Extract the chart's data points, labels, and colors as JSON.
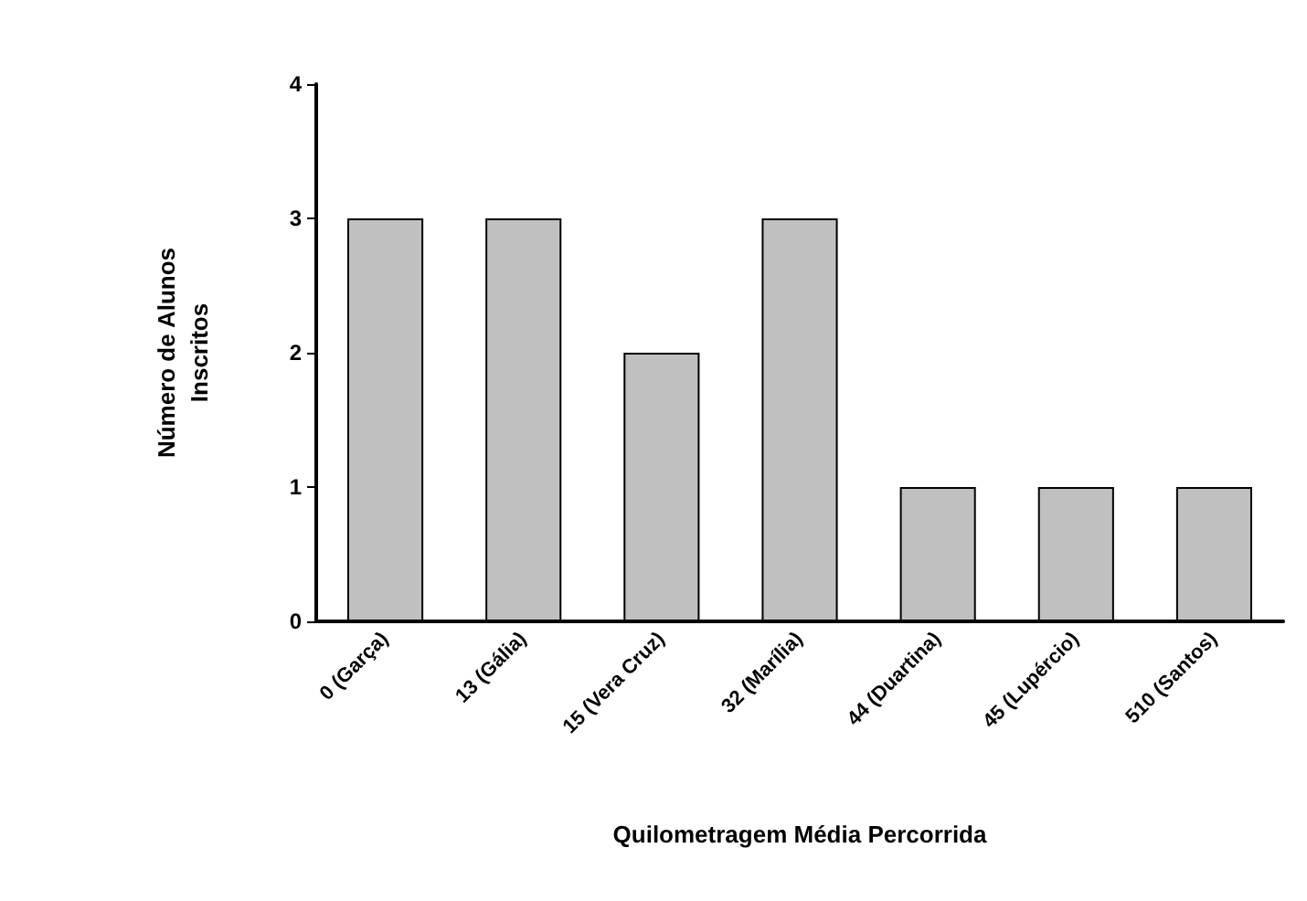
{
  "chart_data": {
    "type": "bar",
    "xlabel": "Quilometragem Média Percorrida",
    "ylabel": "Número de Alunos\nInscritos",
    "categories": [
      "0 (Garça)",
      "13 (Gália)",
      "15 (Vera Cruz)",
      "32 (Marília)",
      "44 (Duartina)",
      "45 (Lupércio)",
      "510 (Santos)"
    ],
    "values": [
      3,
      3,
      2,
      3,
      1,
      1,
      1
    ],
    "color": "#c0c0c0",
    "ylim": [
      0,
      4
    ],
    "yticks": [
      0,
      1,
      2,
      3,
      4
    ],
    "grid": false
  }
}
